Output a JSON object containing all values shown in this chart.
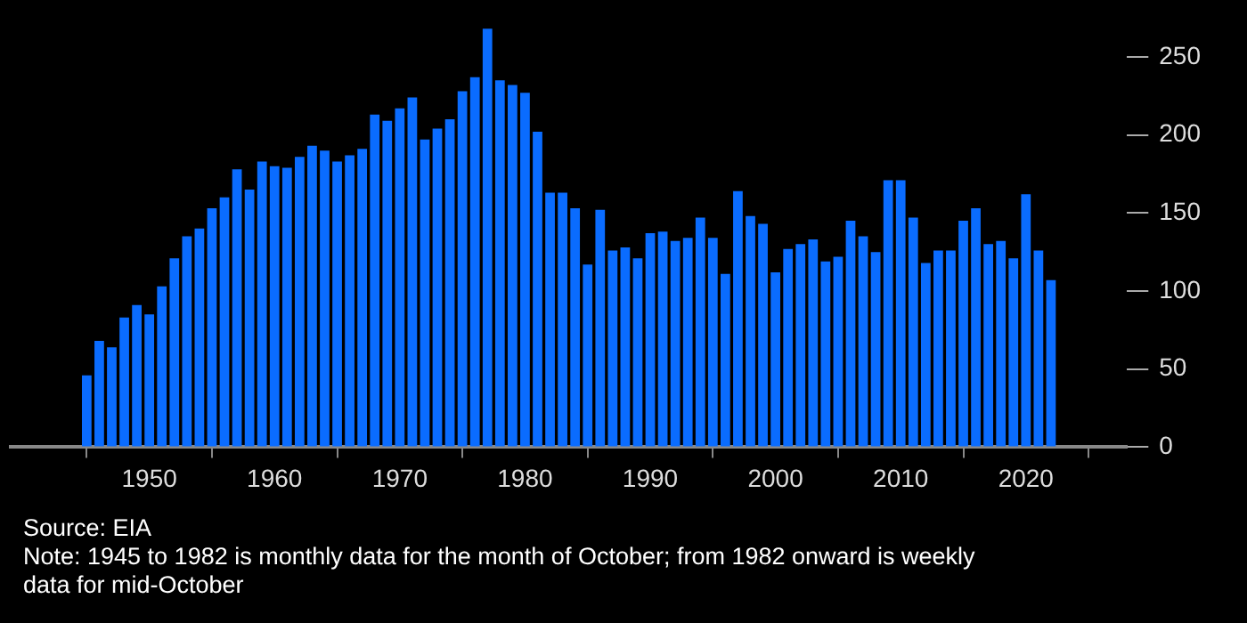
{
  "chart_data": {
    "type": "bar",
    "color": "#0a6cff",
    "x": [
      1945,
      1946,
      1947,
      1948,
      1949,
      1950,
      1951,
      1952,
      1953,
      1954,
      1955,
      1956,
      1957,
      1958,
      1959,
      1960,
      1961,
      1962,
      1963,
      1964,
      1965,
      1966,
      1967,
      1968,
      1969,
      1970,
      1971,
      1972,
      1973,
      1974,
      1975,
      1976,
      1977,
      1978,
      1979,
      1980,
      1981,
      1982,
      1983,
      1984,
      1985,
      1986,
      1987,
      1988,
      1989,
      1990,
      1991,
      1992,
      1993,
      1994,
      1995,
      1996,
      1997,
      1998,
      1999,
      2000,
      2001,
      2002,
      2003,
      2004,
      2005,
      2006,
      2007,
      2008,
      2009,
      2010,
      2011,
      2012,
      2013,
      2014,
      2015,
      2016,
      2017,
      2018,
      2019,
      2020,
      2021,
      2022
    ],
    "values": [
      46,
      68,
      64,
      83,
      91,
      85,
      103,
      121,
      135,
      140,
      153,
      160,
      178,
      165,
      183,
      180,
      179,
      186,
      193,
      190,
      183,
      187,
      191,
      213,
      209,
      217,
      224,
      197,
      204,
      210,
      228,
      237,
      268,
      235,
      232,
      227,
      202,
      163,
      163,
      153,
      117,
      152,
      126,
      128,
      121,
      137,
      138,
      132,
      134,
      147,
      134,
      111,
      164,
      148,
      143,
      112,
      127,
      130,
      133,
      119,
      122,
      145,
      135,
      125,
      171,
      171,
      147,
      118,
      126,
      126,
      145,
      153,
      130,
      132,
      121,
      162,
      126,
      107
    ],
    "xlim": [
      1944.5,
      2022.5
    ],
    "xticks": [
      1950,
      1960,
      1970,
      1980,
      1990,
      2000,
      2010,
      2020
    ],
    "ylim": [
      0,
      270
    ],
    "yticks": [
      0,
      50,
      100,
      150,
      200,
      250
    ],
    "annotations": [
      "Source: EIA",
      "Note: 1945 to 1982 is monthly data for the month of October; from 1982 onward is weekly data for mid-October"
    ]
  }
}
